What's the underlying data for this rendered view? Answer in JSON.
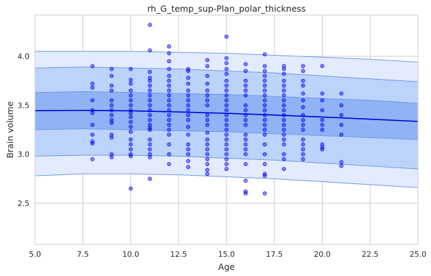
{
  "chart_data": {
    "type": "scatter",
    "title": "rh_G_temp_sup-Plan_polar_thickness",
    "xlabel": "Age",
    "ylabel": "Brain volume",
    "xlim": [
      5.0,
      25.0
    ],
    "ylim": [
      2.08,
      4.42
    ],
    "xticks": [
      "5.0",
      "7.5",
      "10.0",
      "12.5",
      "15.0",
      "17.5",
      "20.0",
      "22.5",
      "25.0"
    ],
    "yticks": [
      "2.5",
      "3.0",
      "3.5",
      "4.0"
    ],
    "grid": true,
    "colors": {
      "points": "#0000ff",
      "median_line": "#0000dd",
      "band_outer": "#e3ecff",
      "band_mid": "#bcd3fb",
      "band_inner": "#8fb3f5",
      "band_edge": "#6d98ea",
      "grid": "#cccccc"
    },
    "median": {
      "x": [
        5,
        7.5,
        10,
        12.5,
        15,
        17.5,
        20,
        22.5,
        25
      ],
      "y": [
        3.445,
        3.448,
        3.443,
        3.432,
        3.418,
        3.4,
        3.38,
        3.358,
        3.335
      ]
    },
    "percentile_bands": [
      {
        "name": "outer",
        "x": [
          5,
          7.5,
          10,
          12.5,
          15,
          17.5,
          20,
          22.5,
          25
        ],
        "lower": [
          2.78,
          2.8,
          2.8,
          2.79,
          2.77,
          2.75,
          2.72,
          2.69,
          2.66
        ],
        "upper": [
          4.05,
          4.05,
          4.05,
          4.04,
          4.03,
          4.01,
          3.99,
          3.97,
          3.94
        ]
      },
      {
        "name": "middle",
        "x": [
          5,
          7.5,
          10,
          12.5,
          15,
          17.5,
          20,
          22.5,
          25
        ],
        "lower": [
          2.98,
          2.99,
          2.99,
          2.98,
          2.96,
          2.94,
          2.91,
          2.88,
          2.85
        ],
        "upper": [
          3.88,
          3.89,
          3.88,
          3.87,
          3.85,
          3.83,
          3.8,
          3.77,
          3.74
        ]
      },
      {
        "name": "inner",
        "x": [
          5,
          7.5,
          10,
          12.5,
          15,
          17.5,
          20,
          22.5,
          25
        ],
        "lower": [
          3.25,
          3.26,
          3.25,
          3.24,
          3.23,
          3.21,
          3.19,
          3.17,
          3.15
        ],
        "upper": [
          3.63,
          3.64,
          3.63,
          3.62,
          3.61,
          3.59,
          3.57,
          3.55,
          3.52
        ]
      }
    ],
    "points": {
      "x": [
        8,
        8,
        8,
        8,
        8,
        8,
        8,
        8,
        8,
        8,
        8,
        9,
        9,
        9,
        9,
        9,
        9,
        9,
        9,
        9,
        9,
        9,
        9,
        9,
        9,
        10,
        10,
        10,
        10,
        10,
        10,
        10,
        10,
        10,
        10,
        10,
        10,
        10,
        10,
        10,
        10,
        10,
        10,
        10,
        11,
        11,
        11,
        11,
        11,
        11,
        11,
        11,
        11,
        11,
        11,
        11,
        11,
        11,
        11,
        11,
        11,
        11,
        11,
        11,
        11,
        11,
        12,
        12,
        12,
        12,
        12,
        12,
        12,
        12,
        12,
        12,
        12,
        12,
        12,
        12,
        12,
        12,
        12,
        12,
        12,
        12,
        13,
        13,
        13,
        13,
        13,
        13,
        13,
        13,
        13,
        13,
        13,
        13,
        13,
        13,
        13,
        13,
        13,
        13,
        14,
        14,
        14,
        14,
        14,
        14,
        14,
        14,
        14,
        14,
        14,
        14,
        14,
        14,
        14,
        14,
        14,
        14,
        14,
        14,
        15,
        15,
        15,
        15,
        15,
        15,
        15,
        15,
        15,
        15,
        15,
        15,
        15,
        15,
        15,
        15,
        15,
        15,
        15,
        15,
        15,
        15,
        15,
        15,
        16,
        16,
        16,
        16,
        16,
        16,
        16,
        16,
        16,
        16,
        16,
        16,
        16,
        16,
        16,
        16,
        16,
        16,
        16,
        16,
        17,
        17,
        17,
        17,
        17,
        17,
        17,
        17,
        17,
        17,
        17,
        17,
        17,
        17,
        17,
        17,
        17,
        17,
        17,
        17,
        17,
        17,
        18,
        18,
        18,
        18,
        18,
        18,
        18,
        18,
        18,
        18,
        18,
        18,
        18,
        18,
        18,
        18,
        18,
        18,
        18,
        18,
        19,
        19,
        19,
        19,
        19,
        19,
        19,
        19,
        19,
        19,
        19,
        19,
        19,
        19,
        19,
        19,
        20,
        20,
        20,
        20,
        20,
        20,
        20,
        20,
        20,
        20,
        21,
        21,
        21,
        21,
        21,
        21,
        21
      ],
      "y": [
        3.9,
        3.72,
        3.68,
        3.55,
        3.45,
        3.42,
        3.3,
        3.2,
        3.13,
        3.11,
        2.95,
        3.87,
        3.8,
        3.7,
        3.65,
        3.55,
        3.5,
        3.45,
        3.4,
        3.35,
        3.32,
        3.2,
        3.17,
        3.0,
        2.97,
        3.87,
        3.76,
        3.72,
        3.65,
        3.6,
        3.55,
        3.5,
        3.45,
        3.42,
        3.38,
        3.33,
        3.28,
        3.23,
        3.15,
        3.1,
        3.05,
        3.0,
        2.98,
        2.65,
        4.32,
        4.06,
        3.84,
        3.78,
        3.75,
        3.7,
        3.65,
        3.6,
        3.55,
        3.5,
        3.45,
        3.4,
        3.35,
        3.3,
        3.27,
        3.25,
        3.15,
        3.1,
        3.05,
        3.0,
        2.97,
        2.75,
        4.1,
        4.03,
        3.95,
        3.87,
        3.8,
        3.75,
        3.7,
        3.65,
        3.6,
        3.55,
        3.5,
        3.45,
        3.4,
        3.35,
        3.3,
        3.25,
        3.2,
        3.1,
        3.0,
        2.9,
        3.87,
        3.85,
        3.78,
        3.72,
        3.65,
        3.6,
        3.55,
        3.5,
        3.45,
        3.4,
        3.35,
        3.28,
        3.2,
        3.1,
        3.05,
        3.0,
        2.93,
        2.87,
        3.96,
        3.9,
        3.8,
        3.72,
        3.65,
        3.6,
        3.55,
        3.5,
        3.4,
        3.35,
        3.3,
        3.22,
        3.15,
        3.1,
        3.05,
        3.0,
        2.95,
        2.9,
        2.84,
        2.8,
        4.2,
        3.98,
        3.93,
        3.87,
        3.82,
        3.75,
        3.7,
        3.65,
        3.6,
        3.55,
        3.5,
        3.45,
        3.4,
        3.35,
        3.3,
        3.25,
        3.2,
        3.15,
        3.1,
        3.05,
        3.0,
        2.95,
        2.9,
        2.85,
        3.92,
        3.85,
        3.75,
        3.7,
        3.65,
        3.6,
        3.5,
        3.45,
        3.4,
        3.35,
        3.3,
        3.2,
        3.15,
        3.1,
        3.05,
        3.0,
        2.9,
        2.73,
        2.62,
        2.6,
        4.02,
        3.9,
        3.85,
        3.8,
        3.75,
        3.7,
        3.65,
        3.6,
        3.55,
        3.5,
        3.45,
        3.4,
        3.35,
        3.3,
        3.25,
        3.2,
        3.1,
        3.0,
        2.9,
        2.8,
        2.78,
        2.6,
        3.9,
        3.87,
        3.82,
        3.75,
        3.7,
        3.65,
        3.6,
        3.55,
        3.5,
        3.45,
        3.4,
        3.35,
        3.3,
        3.25,
        3.2,
        3.15,
        3.1,
        3.0,
        2.95,
        2.85,
        3.9,
        3.85,
        3.75,
        3.7,
        3.62,
        3.55,
        3.48,
        3.4,
        3.35,
        3.3,
        3.25,
        3.15,
        3.1,
        3.05,
        3.0,
        2.95,
        3.9,
        3.62,
        3.55,
        3.45,
        3.35,
        3.3,
        3.25,
        3.1,
        3.07,
        3.05,
        3.62,
        3.5,
        3.4,
        3.3,
        3.2,
        2.92,
        2.88
      ]
    }
  }
}
